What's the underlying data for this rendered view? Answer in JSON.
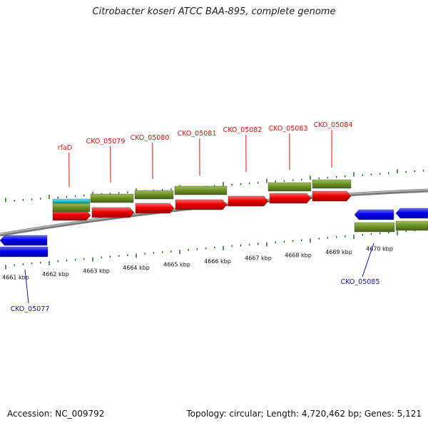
{
  "title": "Citrobacter koseri ATCC BAA-895, complete genome",
  "footer": {
    "accession": "Accession: NC_009792",
    "summary": "Topology: circular; Length: 4,720,462 bp; Genes: 5,121"
  },
  "scale_labels": [
    "4661 kbp",
    "4662 kbp",
    "4663 kbp",
    "4664 kbp",
    "4665 kbp",
    "4666 kbp",
    "4667 kbp",
    "4668 kbp",
    "4669 kbp",
    "4670 kbp"
  ],
  "forward_genes": [
    {
      "name": "rfaD",
      "type": "misc"
    },
    {
      "name": "CKO_05079",
      "type": "cds"
    },
    {
      "name": "CKO_05080",
      "type": "cds"
    },
    {
      "name": "CKO_05081",
      "type": "cds"
    },
    {
      "name": "CKO_05082",
      "type": "cds"
    },
    {
      "name": "CKO_05083",
      "type": "cds"
    },
    {
      "name": "CKO_05084",
      "type": "cds"
    }
  ],
  "reverse_genes": [
    {
      "name": "CKO_05077"
    },
    {
      "name": "CKO_05085"
    }
  ],
  "colors": {
    "forward_label": "#e8120c",
    "reverse_label": "#1010cc",
    "forward_gene": "#ee0000",
    "reverse_gene": "#0000ee",
    "cds_feature": "#6b8e23",
    "misc_feature": "#1cc4c4",
    "tick": "#0a6b0a",
    "backbone": "#888888"
  }
}
